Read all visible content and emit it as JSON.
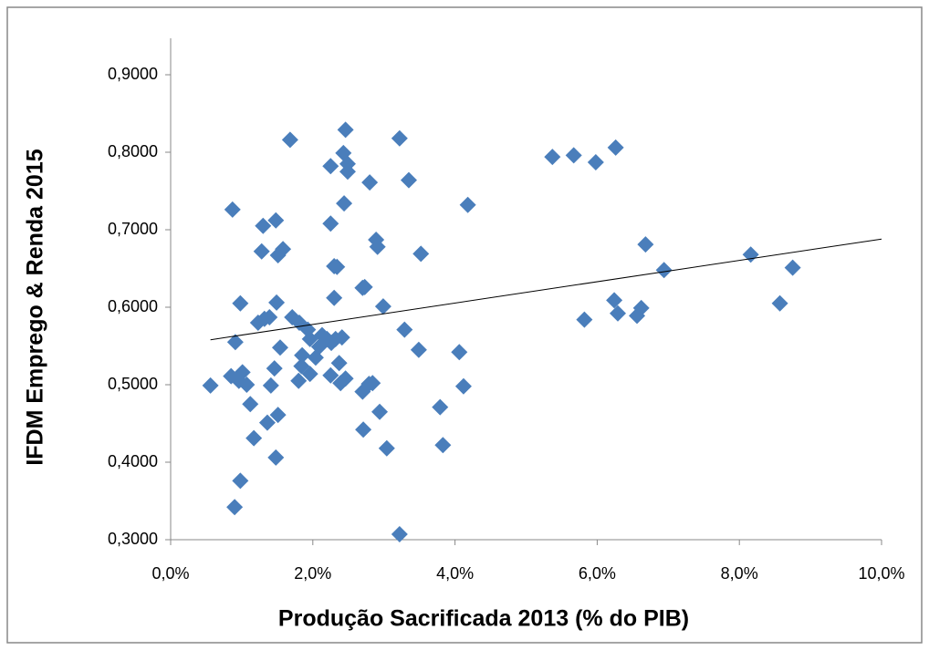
{
  "chart_data": {
    "type": "scatter",
    "x_label": "Produção Sacrificada 2013 (%  do PIB)",
    "y_label": "IFDM Emprego & Renda 2015",
    "color": "#4a7ebb",
    "xlim": [
      0,
      10
    ],
    "ylim": [
      0.3,
      0.9
    ],
    "xticks": [
      {
        "value": 0,
        "label": "0,0%"
      },
      {
        "value": 2,
        "label": "2,0%"
      },
      {
        "value": 4,
        "label": "4,0%"
      },
      {
        "value": 6,
        "label": "6,0%"
      },
      {
        "value": 8,
        "label": "8,0%"
      },
      {
        "value": 10,
        "label": "10,0%"
      }
    ],
    "yticks": [
      {
        "value": 0.3,
        "label": "0,3000"
      },
      {
        "value": 0.4,
        "label": "0,4000"
      },
      {
        "value": 0.5,
        "label": "0,5000"
      },
      {
        "value": 0.6,
        "label": "0,6000"
      },
      {
        "value": 0.7,
        "label": "0,7000"
      },
      {
        "value": 0.8,
        "label": "0,8000"
      },
      {
        "value": 0.9,
        "label": "0,9000"
      }
    ],
    "x": [
      0.56,
      0.87,
      0.91,
      0.98,
      0.85,
      0.96,
      1.01,
      1.07,
      0.98,
      1.12,
      1.17,
      0.9,
      1.3,
      1.28,
      1.23,
      1.32,
      1.39,
      1.41,
      1.36,
      1.48,
      1.51,
      1.58,
      1.49,
      1.54,
      1.46,
      1.51,
      1.48,
      1.68,
      1.71,
      1.81,
      1.85,
      1.84,
      1.8,
      1.93,
      1.96,
      2.04,
      1.96,
      2.09,
      2.13,
      2.2,
      2.25,
      2.25,
      2.3,
      2.34,
      2.3,
      2.26,
      2.32,
      2.25,
      2.41,
      2.37,
      2.39,
      2.46,
      2.43,
      2.49,
      2.49,
      2.44,
      2.46,
      2.7,
      2.73,
      2.8,
      2.7,
      2.79,
      2.71,
      2.84,
      2.89,
      2.91,
      2.99,
      2.94,
      3.04,
      3.22,
      3.35,
      3.29,
      3.22,
      3.52,
      3.49,
      3.79,
      3.83,
      4.18,
      4.06,
      4.12,
      5.37,
      5.67,
      5.98,
      6.26,
      5.82,
      6.24,
      6.29,
      6.56,
      6.62,
      6.68,
      6.94,
      8.16,
      8.57,
      8.75
    ],
    "y": [
      0.499,
      0.726,
      0.555,
      0.605,
      0.511,
      0.505,
      0.516,
      0.5,
      0.376,
      0.475,
      0.431,
      0.342,
      0.705,
      0.672,
      0.58,
      0.585,
      0.587,
      0.499,
      0.451,
      0.712,
      0.667,
      0.675,
      0.606,
      0.548,
      0.521,
      0.461,
      0.406,
      0.816,
      0.587,
      0.58,
      0.538,
      0.524,
      0.505,
      0.571,
      0.559,
      0.535,
      0.514,
      0.549,
      0.564,
      0.559,
      0.782,
      0.708,
      0.653,
      0.652,
      0.612,
      0.554,
      0.559,
      0.512,
      0.561,
      0.528,
      0.502,
      0.829,
      0.799,
      0.785,
      0.775,
      0.734,
      0.508,
      0.625,
      0.626,
      0.761,
      0.491,
      0.501,
      0.442,
      0.502,
      0.687,
      0.678,
      0.601,
      0.465,
      0.418,
      0.818,
      0.764,
      0.571,
      0.307,
      0.669,
      0.545,
      0.471,
      0.422,
      0.732,
      0.542,
      0.498,
      0.794,
      0.796,
      0.787,
      0.806,
      0.584,
      0.609,
      0.592,
      0.589,
      0.599,
      0.681,
      0.648,
      0.668,
      0.605,
      0.651
    ],
    "trendline": {
      "x": [
        0.56,
        10
      ],
      "y": [
        0.558,
        0.688
      ]
    }
  }
}
